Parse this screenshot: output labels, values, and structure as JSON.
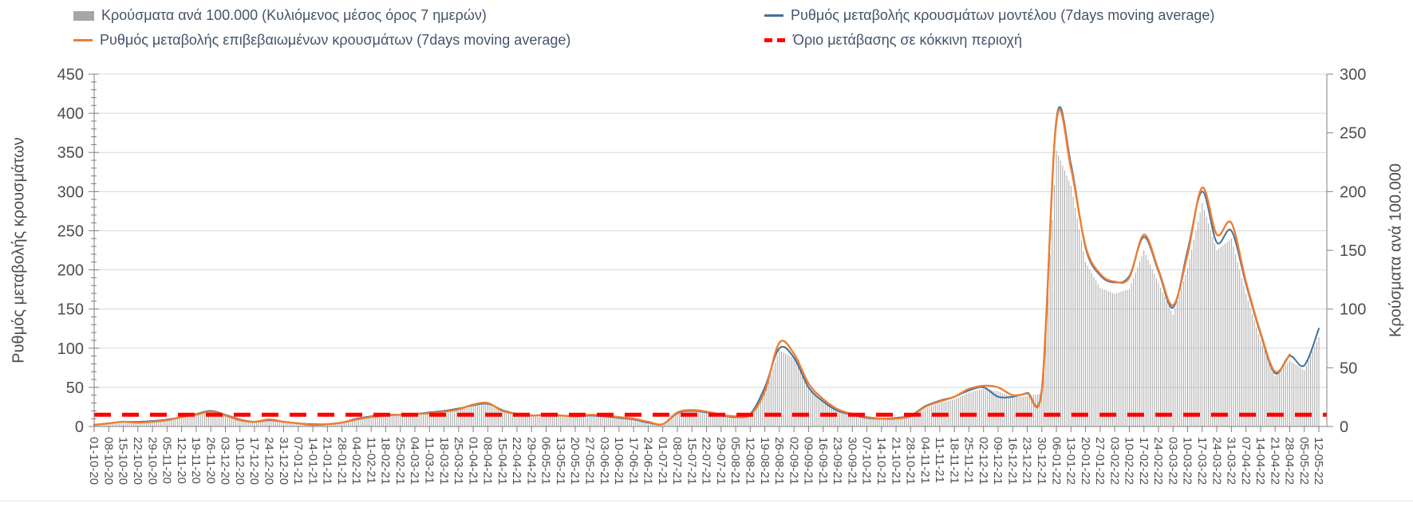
{
  "colors": {
    "bars": "#a6a6a6",
    "model_line": "#41719c",
    "confirmed_line": "#ed7d31",
    "threshold": "#ff0000",
    "grid": "#d9d9d9",
    "axis": "#808080",
    "tick_label": "#4d4d4d",
    "legend_text": "#44546a"
  },
  "chart_data": {
    "type": "combo",
    "grid": "horizontal",
    "legend_position": "top",
    "x": [
      "01-10-20",
      "08-10-20",
      "15-10-20",
      "22-10-20",
      "29-10-20",
      "05-11-20",
      "12-11-20",
      "19-11-20",
      "26-11-20",
      "03-12-20",
      "10-12-20",
      "17-12-20",
      "24-12-20",
      "31-12-20",
      "07-01-21",
      "14-01-21",
      "21-01-21",
      "28-01-21",
      "04-02-21",
      "11-02-21",
      "18-02-21",
      "25-02-21",
      "04-03-21",
      "11-03-21",
      "18-03-21",
      "25-03-21",
      "01-04-21",
      "08-04-21",
      "15-04-21",
      "22-04-21",
      "29-04-21",
      "06-05-21",
      "13-05-21",
      "20-05-21",
      "27-05-21",
      "03-06-21",
      "10-06-21",
      "17-06-21",
      "24-06-21",
      "01-07-21",
      "08-07-21",
      "15-07-21",
      "22-07-21",
      "29-07-21",
      "05-08-21",
      "12-08-21",
      "19-08-21",
      "26-08-21",
      "02-09-21",
      "09-09-21",
      "16-09-21",
      "23-09-21",
      "30-09-21",
      "07-10-21",
      "14-10-21",
      "21-10-21",
      "28-10-21",
      "04-11-21",
      "11-11-21",
      "18-11-21",
      "25-11-21",
      "02-12-21",
      "09-12-21",
      "16-12-21",
      "23-12-21",
      "30-12-21",
      "06-01-22",
      "13-01-22",
      "20-01-22",
      "27-01-22",
      "03-02-22",
      "10-02-22",
      "17-02-22",
      "24-02-22",
      "03-03-22",
      "10-03-22",
      "17-03-22",
      "24-03-22",
      "31-03-22",
      "07-04-22",
      "14-04-22",
      "21-04-22",
      "28-04-22",
      "05-05-22",
      "12-05-22"
    ],
    "series": [
      {
        "name": "Κρούσματα ανά 100.000 (Κυλιόμενος μέσος όρος 7 ημερών)",
        "type": "bar",
        "axis": "right",
        "color": "#a6a6a6",
        "values": [
          1,
          2,
          3,
          3,
          4,
          5,
          7,
          9,
          12,
          9,
          5,
          4,
          5,
          4,
          2,
          2,
          2,
          3,
          6,
          7,
          9,
          9,
          10,
          11,
          12,
          14,
          17,
          19,
          13,
          10,
          9,
          9,
          9,
          8,
          9,
          9,
          7,
          6,
          3,
          2,
          11,
          13,
          12,
          9,
          8,
          9,
          28,
          65,
          58,
          34,
          21,
          13,
          10,
          7,
          6,
          6,
          8,
          15,
          20,
          23,
          29,
          32,
          30,
          25,
          26,
          28,
          235,
          205,
          140,
          118,
          113,
          117,
          150,
          122,
          95,
          135,
          190,
          150,
          160,
          113,
          73,
          43,
          56,
          48,
          76
        ]
      },
      {
        "name": "Ρυθμός μεταβολής κρουσμάτων μοντέλου (7days moving average)",
        "type": "line",
        "axis": "left",
        "color": "#41719c",
        "values": [
          2,
          4,
          6,
          6,
          7,
          9,
          12,
          16,
          20,
          15,
          9,
          6,
          8,
          6,
          4,
          3,
          3,
          5,
          10,
          13,
          15,
          15,
          16,
          18,
          20,
          23,
          27,
          29,
          21,
          16,
          14,
          15,
          14,
          13,
          14,
          13,
          11,
          9,
          5,
          3,
          17,
          20,
          18,
          14,
          12,
          16,
          50,
          100,
          88,
          50,
          32,
          20,
          15,
          11,
          10,
          11,
          14,
          26,
          33,
          38,
          46,
          50,
          38,
          38,
          43,
          48,
          393,
          335,
          228,
          193,
          184,
          192,
          242,
          198,
          152,
          225,
          300,
          235,
          250,
          182,
          118,
          68,
          90,
          78,
          125
        ]
      },
      {
        "name": "Ρυθμός μεταβολής επιβεβαιωμένων κρουσμάτων (7days moving average)",
        "type": "line",
        "axis": "left",
        "color": "#ed7d31",
        "values": [
          2,
          4,
          6,
          5,
          6,
          8,
          12,
          15,
          19,
          14,
          8,
          6,
          9,
          6,
          4,
          2,
          3,
          5,
          9,
          12,
          14,
          15,
          16,
          17,
          19,
          22,
          28,
          30,
          20,
          16,
          14,
          15,
          14,
          13,
          15,
          14,
          12,
          10,
          6,
          3,
          18,
          21,
          19,
          15,
          13,
          15,
          45,
          107,
          93,
          55,
          35,
          22,
          16,
          12,
          10,
          10,
          13,
          25,
          32,
          38,
          48,
          52,
          50,
          40,
          42,
          45,
          390,
          330,
          230,
          195,
          185,
          190,
          245,
          200,
          155,
          220,
          305,
          245,
          260,
          185,
          120,
          70,
          92,
          null,
          null
        ]
      },
      {
        "name": "Όριο μετάβασης σε κόκκινη περιοχή",
        "type": "threshold",
        "axis": "left",
        "color": "#ff0000",
        "value": 15
      }
    ],
    "y_left": {
      "title": "Ρυθμός μεταβολής κρουσμάτων",
      "min": 0,
      "max": 450,
      "tick_step": 50,
      "minor_tick_step": 10,
      "ticks": [
        0,
        50,
        100,
        150,
        200,
        250,
        300,
        350,
        400,
        450
      ]
    },
    "y_right": {
      "title": "Κρούσματα ανά 100.000",
      "min": 0,
      "max": 300,
      "tick_step": 50,
      "ticks": [
        0,
        50,
        100,
        150,
        200,
        250,
        300
      ]
    }
  }
}
